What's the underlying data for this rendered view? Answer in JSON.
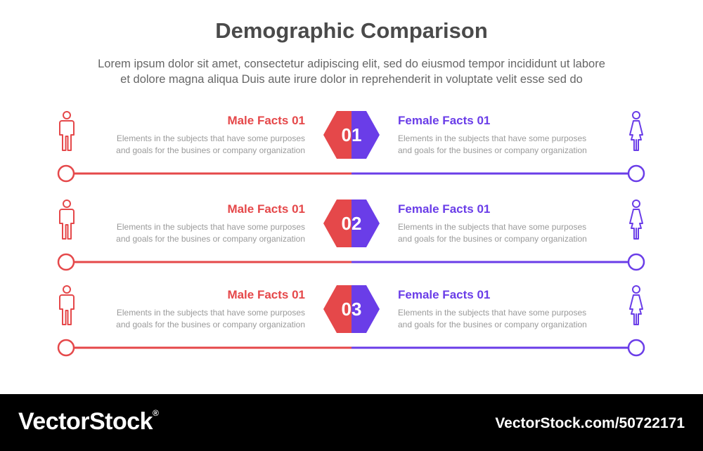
{
  "header": {
    "title": "Demographic Comparison",
    "subtitle_line1": "Lorem ipsum dolor sit amet, consectetur adipiscing elit, sed do eiusmod tempor incididunt ut labore",
    "subtitle_line2": "et dolore magna aliqua Duis aute irure dolor in reprehenderit in voluptate velit esse sed do"
  },
  "colors": {
    "male": "#e5484a",
    "female": "#6a3de8",
    "title": "#4a4a4a",
    "text": "#9a9a9a"
  },
  "rows": [
    {
      "number": "01",
      "male_title": "Male Facts 01",
      "male_desc_line1": "Elements in the subjects that have some purposes",
      "male_desc_line2": "and goals for the  busines or company organization",
      "female_title": "Female Facts 01",
      "female_desc_line1": "Elements in the subjects that have some purposes",
      "female_desc_line2": "and goals for the  busines or company organization",
      "male_icon": "male-person-icon",
      "female_icon": "female-person-icon"
    },
    {
      "number": "02",
      "male_title": "Male Facts 01",
      "male_desc_line1": "Elements in the subjects that have some purposes",
      "male_desc_line2": "and goals for the  busines or company organization",
      "female_title": "Female Facts 01",
      "female_desc_line1": "Elements in the subjects that have some purposes",
      "female_desc_line2": "and goals for the  busines or company organization",
      "male_icon": "male-person-icon",
      "female_icon": "female-person-icon"
    },
    {
      "number": "03",
      "male_title": "Male Facts 01",
      "male_desc_line1": "Elements in the subjects that have some purposes",
      "male_desc_line2": "and goals for the  busines or company organization",
      "female_title": "Female Facts 01",
      "female_desc_line1": "Elements in the subjects that have some purposes",
      "female_desc_line2": "and goals for the  busines or company organization",
      "male_icon": "male-person-icon",
      "female_icon": "female-person-icon"
    }
  ],
  "footer": {
    "brand": "VectorStock",
    "registered_mark": "®",
    "stock_id": "VectorStock.com/50722171"
  }
}
